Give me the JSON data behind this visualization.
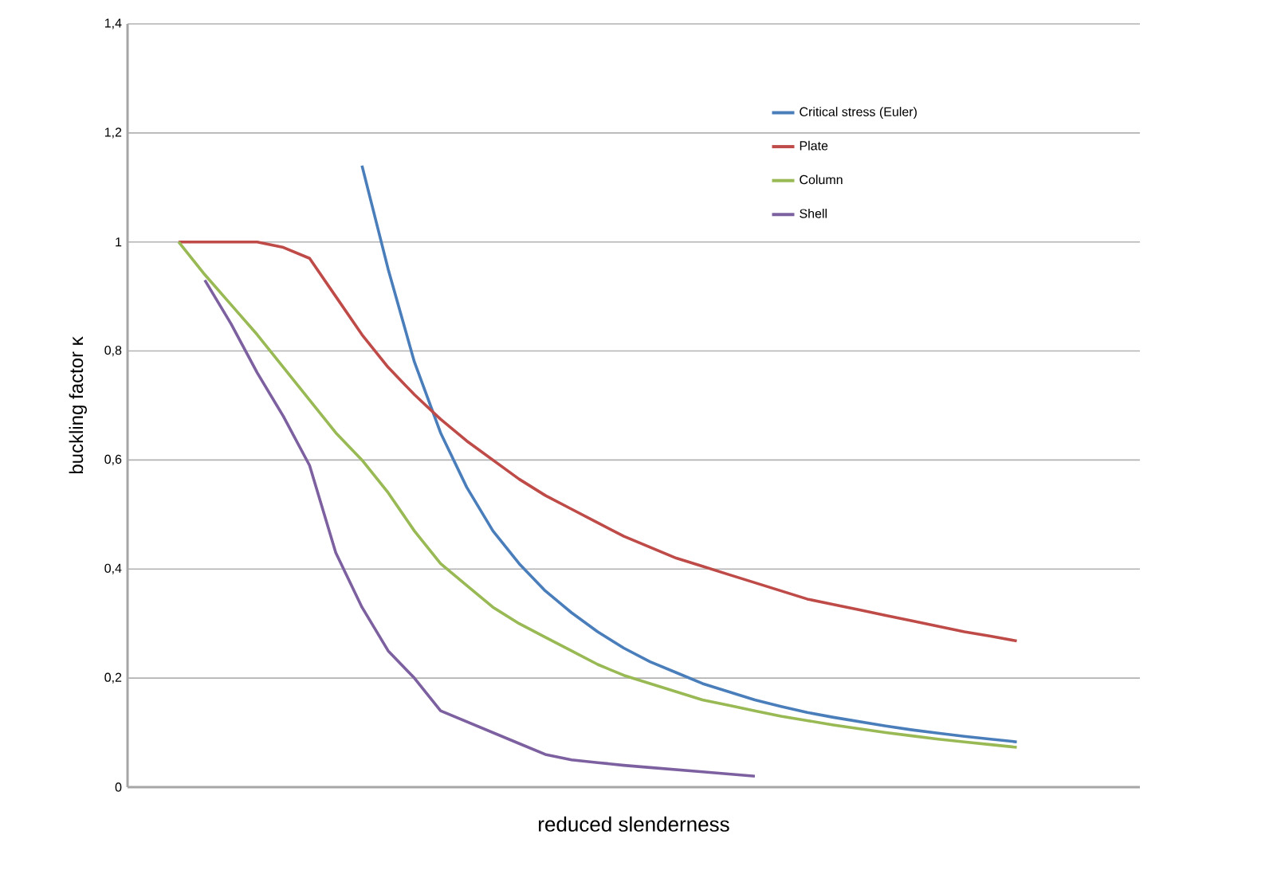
{
  "chart_data": {
    "type": "line",
    "xlabel": "reduced slenderness",
    "ylabel": "buckling factor κ",
    "categories": [
      null,
      null,
      null,
      null,
      null,
      null,
      null,
      null,
      null,
      null,
      null,
      null,
      null,
      null,
      null,
      null,
      null,
      null,
      null,
      null,
      null,
      null,
      null,
      null,
      null,
      null,
      null,
      null,
      null,
      null,
      null,
      null,
      null
    ],
    "series": [
      {
        "name": "Critical stress (Euler)",
        "color": "#4a7ebb",
        "values": [
          null,
          null,
          null,
          null,
          null,
          null,
          null,
          1.14,
          0.95,
          0.78,
          0.65,
          0.55,
          0.47,
          0.41,
          0.36,
          0.32,
          0.285,
          0.255,
          0.23,
          0.21,
          0.19,
          0.175,
          0.16,
          0.148,
          0.137,
          0.128,
          0.12,
          0.112,
          0.105,
          0.099,
          0.093,
          0.088,
          0.083
        ]
      },
      {
        "name": "Plate",
        "color": "#be4b48",
        "values": [
          1,
          1,
          1,
          1,
          0.99,
          0.97,
          0.9,
          0.83,
          0.77,
          0.72,
          0.675,
          0.635,
          0.6,
          0.565,
          0.535,
          0.51,
          0.485,
          0.46,
          0.44,
          0.42,
          0.405,
          0.39,
          0.375,
          0.36,
          0.345,
          0.335,
          0.325,
          0.315,
          0.305,
          0.295,
          0.285,
          0.277,
          0.268
        ]
      },
      {
        "name": "Column",
        "color": "#98b954",
        "values": [
          1,
          0.94,
          0.885,
          0.83,
          0.77,
          0.71,
          0.65,
          0.6,
          0.54,
          0.47,
          0.41,
          0.37,
          0.33,
          0.3,
          0.275,
          0.25,
          0.225,
          0.205,
          0.19,
          0.175,
          0.16,
          0.15,
          0.14,
          0.13,
          0.122,
          0.114,
          0.107,
          0.1,
          0.094,
          0.088,
          0.083,
          0.078,
          0.073
        ]
      },
      {
        "name": "Shell",
        "color": "#7d60a0",
        "values": [
          null,
          0.93,
          0.85,
          0.76,
          0.68,
          0.59,
          0.43,
          0.33,
          0.25,
          0.2,
          0.14,
          0.12,
          0.1,
          0.08,
          0.06,
          0.05,
          0.045,
          0.04,
          0.036,
          0.032,
          0.028,
          0.024,
          0.02,
          null,
          null,
          null,
          null,
          null,
          null,
          null,
          null,
          null,
          null
        ]
      }
    ],
    "ylim": [
      0,
      1.4
    ],
    "yticks": [
      0,
      {
        "value": 0.2,
        "label": "0,2"
      },
      {
        "value": 0.4,
        "label": "0,4"
      },
      {
        "value": 0.6,
        "label": "0,6"
      },
      {
        "value": 0.8,
        "label": "0,8"
      },
      1,
      {
        "value": 1.2,
        "label": "1,2"
      },
      {
        "value": 1.4,
        "label": "1,4"
      }
    ],
    "grid": "y",
    "legend": "right",
    "tick_labels": "y",
    "marker": "none",
    "line_style": "solid"
  }
}
